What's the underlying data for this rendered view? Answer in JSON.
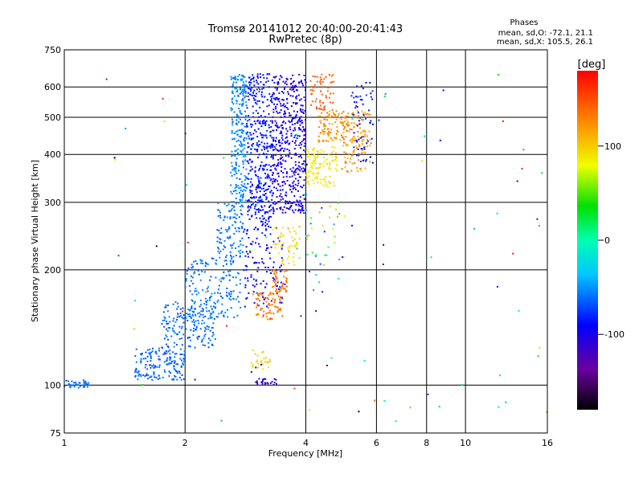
{
  "chart_data": {
    "type": "scatter",
    "title": "Tromsø 20141012 20:40:00-20:41:43",
    "subtitle": "RwPretec (8p)",
    "xlabel": "Frequency [MHz]",
    "ylabel": "Stationary phase Virtual Height [km]",
    "x_scale": "log",
    "y_scale": "log",
    "xlim": [
      1,
      16
    ],
    "ylim": [
      75,
      750
    ],
    "x_ticks": [
      "1",
      "2",
      "4",
      "6",
      "8",
      "10",
      "16"
    ],
    "x_tick_values": [
      1,
      2,
      4,
      6,
      8,
      10,
      16
    ],
    "y_ticks": [
      "75",
      "100",
      "200",
      "300",
      "400",
      "500",
      "600",
      "750"
    ],
    "y_tick_values": [
      75,
      100,
      200,
      300,
      400,
      500,
      600,
      750
    ],
    "grid": true,
    "stats": {
      "heading": "Phases",
      "line_o": "mean, sd,O: -72.1, 21.1",
      "line_x": "mean, sd,X: 105.5, 26.1"
    },
    "colorbar": {
      "label": "[deg]",
      "ticks": [
        "100",
        "0",
        "-100"
      ],
      "tick_values": [
        100,
        0,
        -100
      ],
      "range": [
        -180,
        180
      ]
    },
    "clusters": [
      {
        "x": [
          1.0,
          1.15
        ],
        "y": [
          98,
          103
        ],
        "phase": [
          -75,
          -60
        ],
        "count": 40
      },
      {
        "x": [
          1.5,
          2.0
        ],
        "y": [
          103,
          125
        ],
        "phase": [
          -80,
          -60
        ],
        "count": 160
      },
      {
        "x": [
          1.75,
          2.4
        ],
        "y": [
          125,
          165
        ],
        "phase": [
          -80,
          -55
        ],
        "count": 170
      },
      {
        "x": [
          2.0,
          2.75
        ],
        "y": [
          150,
          215
        ],
        "phase": [
          -75,
          -55
        ],
        "count": 170
      },
      {
        "x": [
          2.4,
          2.8
        ],
        "y": [
          215,
          300
        ],
        "phase": [
          -75,
          -55
        ],
        "count": 110
      },
      {
        "x": [
          2.6,
          2.85
        ],
        "y": [
          300,
          650
        ],
        "phase": [
          -70,
          -50
        ],
        "count": 260
      },
      {
        "x": [
          2.85,
          3.3
        ],
        "y": [
          260,
          650
        ],
        "phase": [
          -105,
          -85
        ],
        "count": 380
      },
      {
        "x": [
          3.3,
          4.0
        ],
        "y": [
          280,
          650
        ],
        "phase": [
          -125,
          -95
        ],
        "count": 480
      },
      {
        "x": [
          2.8,
          3.5
        ],
        "y": [
          160,
          260
        ],
        "phase": [
          -110,
          -90
        ],
        "count": 120
      },
      {
        "x": [
          3.0,
          3.4
        ],
        "y": [
          100,
          104
        ],
        "phase": [
          -130,
          -110
        ],
        "count": 25
      },
      {
        "x": [
          3.0,
          3.5
        ],
        "y": [
          148,
          175
        ],
        "phase": [
          125,
          145
        ],
        "count": 70
      },
      {
        "x": [
          3.3,
          3.6
        ],
        "y": [
          175,
          200
        ],
        "phase": [
          125,
          145
        ],
        "count": 50
      },
      {
        "x": [
          3.3,
          3.8
        ],
        "y": [
          205,
          260
        ],
        "phase": [
          85,
          105
        ],
        "count": 50
      },
      {
        "x": [
          2.9,
          3.3
        ],
        "y": [
          110,
          125
        ],
        "phase": [
          90,
          105
        ],
        "count": 25
      },
      {
        "x": [
          4.0,
          4.8
        ],
        "y": [
          330,
          420
        ],
        "phase": [
          80,
          100
        ],
        "count": 110
      },
      {
        "x": [
          4.3,
          5.0
        ],
        "y": [
          430,
          520
        ],
        "phase": [
          110,
          140
        ],
        "count": 90
      },
      {
        "x": [
          4.1,
          4.7
        ],
        "y": [
          520,
          650
        ],
        "phase": [
          130,
          155
        ],
        "count": 60
      },
      {
        "x": [
          4.9,
          5.8
        ],
        "y": [
          360,
          520
        ],
        "phase": [
          100,
          140
        ],
        "count": 130
      },
      {
        "x": [
          5.2,
          5.9
        ],
        "y": [
          380,
          620
        ],
        "phase": [
          -110,
          -80
        ],
        "count": 60
      },
      {
        "x": [
          3.8,
          5.0
        ],
        "y": [
          190,
          300
        ],
        "phase": [
          -100,
          130
        ],
        "count": 40
      },
      {
        "x": [
          1.2,
          16
        ],
        "y": [
          80,
          650
        ],
        "phase": [
          -180,
          180
        ],
        "count": 90
      }
    ]
  }
}
